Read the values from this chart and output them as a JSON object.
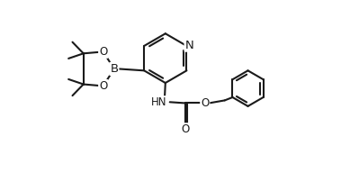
{
  "background_color": "#ffffff",
  "line_color": "#1a1a1a",
  "line_width": 1.5,
  "font_size": 8.5,
  "fig_width": 3.79,
  "fig_height": 1.92,
  "xlim": [
    0,
    10
  ],
  "ylim": [
    0,
    5.05
  ]
}
